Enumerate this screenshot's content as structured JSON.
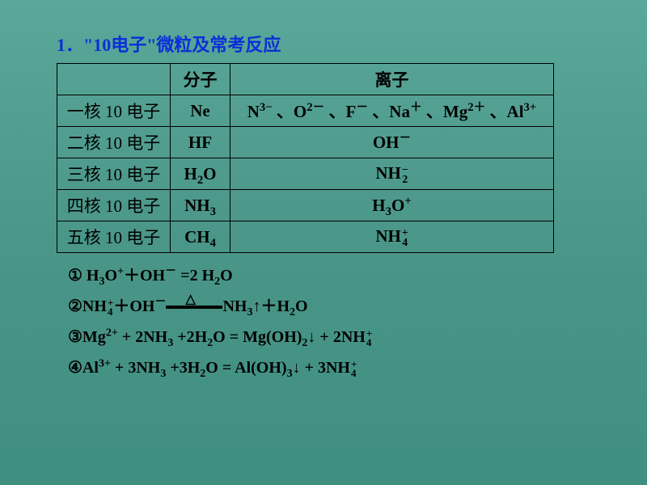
{
  "title": "1．\"10电子\"微粒及常考反应",
  "table": {
    "header": {
      "blank": "",
      "col1": "分子",
      "col2": "离子"
    },
    "rows": [
      {
        "label": "一核 10 电子",
        "molecule": "Ne",
        "ion_html": "N<sup>3−</sup> 、O<sup>2－</sup> 、F<sup>－</sup> 、Na<sup>＋</sup> 、Mg<sup>2＋</sup> 、Al<sup>3+</sup>"
      },
      {
        "label": "二核 10 电子",
        "molecule": "HF",
        "ion_html": "OH<sup>－</sup>"
      },
      {
        "label": "三核 10 电子",
        "molecule_html": "H<sub>2</sub>O",
        "ion_html": "NH<span class=\"supsub\"><span>−</span><span>2</span></span>"
      },
      {
        "label": "四核 10 电子",
        "molecule_html": "NH<sub>3</sub>",
        "ion_html": "H<sub>3</sub>O<sup>+</sup>"
      },
      {
        "label": "五核 10 电子",
        "molecule_html": "CH<sub>4</sub>",
        "ion_html": "NH<span class=\"supsub\"><span>+</span><span>4</span></span>"
      }
    ]
  },
  "equations": [
    "① H<sub>3</sub>O<sup>+</sup>＋OH<sup>－</sup> =2 H<sub>2</sub>O",
    "②NH<span class=\"supsub\"><span>+</span><span>4</span></span>＋OH<sup>－</sup><span class=\"eqline\"><span class=\"tri\">△</span><span class=\"lines\"></span></span>NH<sub>3</sub>↑＋H<sub>2</sub>O",
    "③Mg<sup>2+</sup> + 2NH<sub>3</sub> +2H<sub>2</sub>O = Mg(OH)<sub>2</sub>↓  + 2NH<span class=\"supsub\"><span>+</span><span>4</span></span>",
    "④Al<sup>3+</sup> + 3NH<sub>3</sub> +3H<sub>2</sub>O = Al(OH)<sub>3</sub>↓  + 3NH<span class=\"supsub\"><span>+</span><span>4</span></span>"
  ],
  "colors": {
    "title": "#0a2fd8",
    "bg_top": "#5aa89a",
    "bg_bottom": "#3f8f81",
    "border": "#000000",
    "text": "#000000"
  }
}
